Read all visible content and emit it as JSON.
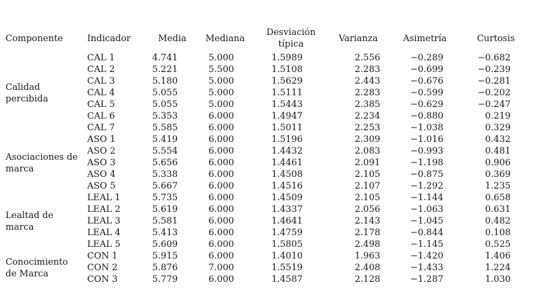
{
  "page": {
    "background_color": "#ffffff",
    "text_color": "#161616"
  },
  "table": {
    "headers": {
      "componente": "Componente",
      "indicador": "Indicador",
      "media": "Media",
      "mediana": "Mediana",
      "desviacion_tipica": "Desviación típica",
      "varianza": "Varianza",
      "asimetria": "Asimetría",
      "curtosis": "Curtosis"
    },
    "groups": [
      {
        "componente": "Calidad percibida",
        "componente_lines": [
          "Calidad",
          "percibida"
        ],
        "rows": [
          {
            "indicador": "CAL 1",
            "media": "4.741",
            "mediana": "5.000",
            "desviacion_tipica": "1.5989",
            "varianza": "2.556",
            "asimetria": "−0.289",
            "curtosis": "−0.682"
          },
          {
            "indicador": "CAL 2",
            "media": "5.221",
            "mediana": "5.500",
            "desviacion_tipica": "1.5108",
            "varianza": "2.283",
            "asimetria": "−0.699",
            "curtosis": "−0.239"
          },
          {
            "indicador": "CAL 3",
            "media": "5.180",
            "mediana": "5.000",
            "desviacion_tipica": "1.5629",
            "varianza": "2.443",
            "asimetria": "−0.676",
            "curtosis": "−0.281"
          },
          {
            "indicador": "CAL 4",
            "media": "5.055",
            "mediana": "5.000",
            "desviacion_tipica": "1.5111",
            "varianza": "2.283",
            "asimetria": "−0.599",
            "curtosis": "−0.202"
          },
          {
            "indicador": "CAL 5",
            "media": "5.055",
            "mediana": "5.000",
            "desviacion_tipica": "1.5443",
            "varianza": "2.385",
            "asimetria": "−0.629",
            "curtosis": "−0.247"
          },
          {
            "indicador": "CAL 6",
            "media": "5.353",
            "mediana": "6.000",
            "desviacion_tipica": "1.4947",
            "varianza": "2.234",
            "asimetria": "−0.880",
            "curtosis": "0.219"
          },
          {
            "indicador": "CAL 7",
            "media": "5.585",
            "mediana": "6.000",
            "desviacion_tipica": "1.5011",
            "varianza": "2.253",
            "asimetria": "−1.038",
            "curtosis": "0.329"
          }
        ]
      },
      {
        "componente": "Asociaciones de marca",
        "componente_lines": [
          "Asociaciones de",
          "marca"
        ],
        "rows": [
          {
            "indicador": "ASO 1",
            "media": "5.419",
            "mediana": "6.000",
            "desviacion_tipica": "1.5196",
            "varianza": "2.309",
            "asimetria": "−1.016",
            "curtosis": "0.432"
          },
          {
            "indicador": "ASO 2",
            "media": "5.554",
            "mediana": "6.000",
            "desviacion_tipica": "1.4432",
            "varianza": "2.083",
            "asimetria": "−0.993",
            "curtosis": "0.481"
          },
          {
            "indicador": "ASO 3",
            "media": "5.656",
            "mediana": "6.000",
            "desviacion_tipica": "1.4461",
            "varianza": "2.091",
            "asimetria": "−1.198",
            "curtosis": "0.906"
          },
          {
            "indicador": "ASO 4",
            "media": "5.338",
            "mediana": "6.000",
            "desviacion_tipica": "1.4508",
            "varianza": "2.105",
            "asimetria": "−0.875",
            "curtosis": "0.369"
          },
          {
            "indicador": "ASO 5",
            "media": "5.667",
            "mediana": "6.000",
            "desviacion_tipica": "1.4516",
            "varianza": "2.107",
            "asimetria": "−1.292",
            "curtosis": "1.235"
          }
        ]
      },
      {
        "componente": "Lealtad de marca",
        "componente_lines": [
          "Lealtad de",
          "marca"
        ],
        "rows": [
          {
            "indicador": "LEAL 1",
            "media": "5.735",
            "mediana": "6.000",
            "desviacion_tipica": "1.4509",
            "varianza": "2.105",
            "asimetria": "−1.144",
            "curtosis": "0.658"
          },
          {
            "indicador": "LEAL 2",
            "media": "5.619",
            "mediana": "6.000",
            "desviacion_tipica": "1.4337",
            "varianza": "2.056",
            "asimetria": "−1.063",
            "curtosis": "0.631"
          },
          {
            "indicador": "LEAL 3",
            "media": "5.581",
            "mediana": "6.000",
            "desviacion_tipica": "1.4641",
            "varianza": "2.143",
            "asimetria": "−1.045",
            "curtosis": "0.482"
          },
          {
            "indicador": "LEAL 4",
            "media": "5.413",
            "mediana": "6.000",
            "desviacion_tipica": "1.4759",
            "varianza": "2.178",
            "asimetria": "−0.844",
            "curtosis": "0.108"
          },
          {
            "indicador": "LEAL 5",
            "media": "5.609",
            "mediana": "6.000",
            "desviacion_tipica": "1.5805",
            "varianza": "2.498",
            "asimetria": "−1.145",
            "curtosis": "0.525"
          }
        ]
      },
      {
        "componente": "Conocimiento de Marca",
        "componente_lines": [
          "Conocimiento",
          "de Marca"
        ],
        "rows": [
          {
            "indicador": "CON 1",
            "media": "5.915",
            "mediana": "6.000",
            "desviacion_tipica": "1.4010",
            "varianza": "1.963",
            "asimetria": "−1.420",
            "curtosis": "1.406"
          },
          {
            "indicador": "CON 2",
            "media": "5.876",
            "mediana": "7.000",
            "desviacion_tipica": "1.5519",
            "varianza": "2.408",
            "asimetria": "−1.433",
            "curtosis": "1.224"
          },
          {
            "indicador": "CON 3",
            "media": "5.779",
            "mediana": "6.000",
            "desviacion_tipica": "1.4587",
            "varianza": "2.128",
            "asimetria": "−1.287",
            "curtosis": "1.030"
          }
        ]
      }
    ]
  }
}
